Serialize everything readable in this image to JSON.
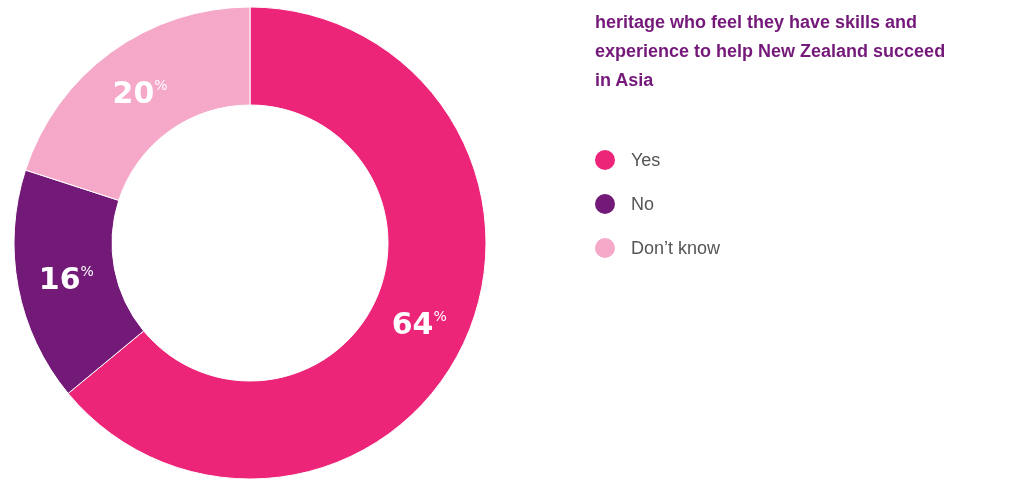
{
  "chart_data": {
    "type": "donut",
    "title": "heritage who feel they have skills and experience to help New Zealand succeed in Asia",
    "categories": [
      "Yes",
      "No",
      "Don’t know"
    ],
    "values": [
      64,
      16,
      20
    ],
    "colors": [
      "#ec2579",
      "#731a78",
      "#f6a8c9"
    ],
    "value_labels": [
      "64$^{%}$",
      "16$^{%}$",
      "20$^{%}$"
    ],
    "legend": "right"
  }
}
